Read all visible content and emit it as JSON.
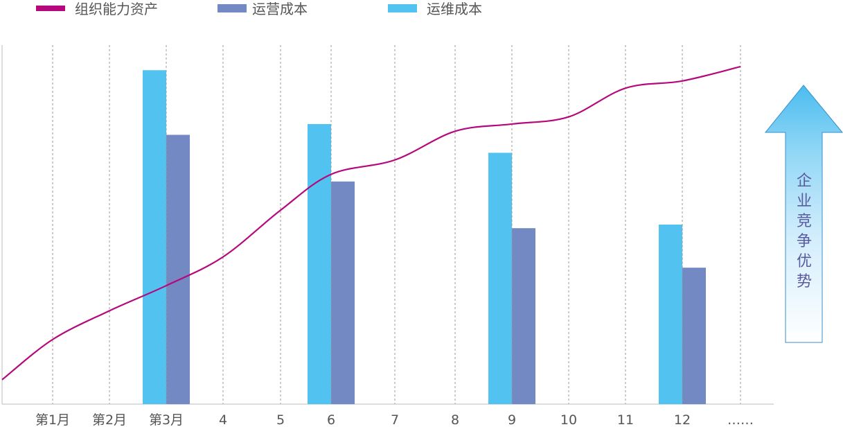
{
  "chart_data": {
    "type": "bar",
    "title": "",
    "xlabel": "",
    "ylabel": "",
    "categories": [
      "第1月",
      "第2月",
      "第3月",
      "4",
      "5",
      "6",
      "7",
      "8",
      "9",
      "10",
      "11",
      "12",
      "……"
    ],
    "ylim": [
      0,
      100
    ],
    "grid": "vertical dashed",
    "legend": "top-left",
    "series": [
      {
        "name": "组织能力资产",
        "kind": "line",
        "color": "#b5087c",
        "values": [
          18,
          26,
          33,
          41,
          54,
          64,
          68,
          76,
          78,
          80,
          88,
          90,
          94
        ]
      },
      {
        "name": "运营成本",
        "kind": "bar",
        "color": "#7389c4",
        "values": [
          null,
          null,
          75,
          null,
          null,
          62,
          null,
          null,
          49,
          null,
          null,
          38,
          null
        ]
      },
      {
        "name": "运维成本",
        "kind": "bar",
        "color": "#52c3f1",
        "values": [
          null,
          null,
          93,
          null,
          null,
          78,
          null,
          null,
          70,
          null,
          null,
          50,
          null
        ]
      }
    ],
    "annotations": [
      {
        "type": "arrow-up",
        "text": "企业竞争优势"
      }
    ]
  }
}
